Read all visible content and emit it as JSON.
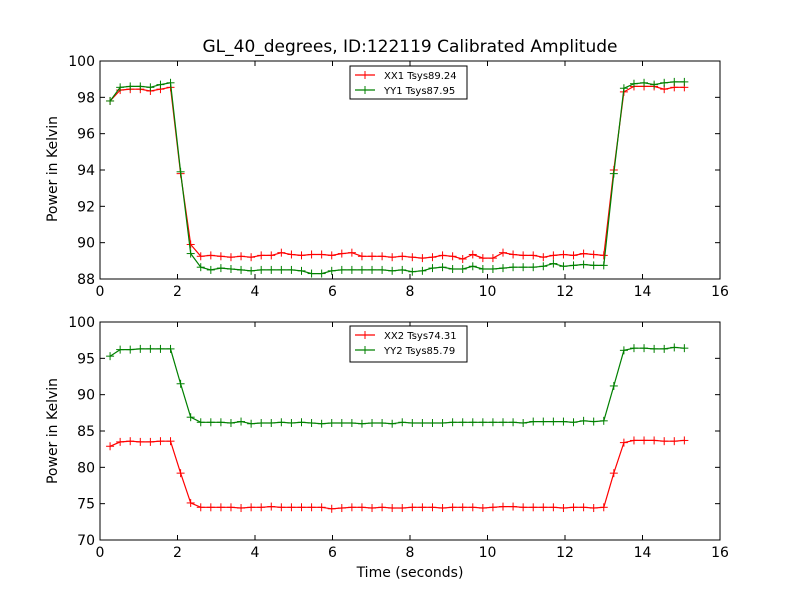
{
  "chart_data": [
    {
      "type": "line",
      "title": "GL_40_degrees, ID:122119 Calibrated Amplitude",
      "ylabel": "Power in Kelvin",
      "xlabel": "",
      "xlim": [
        0,
        16
      ],
      "ylim": [
        88,
        100
      ],
      "xticks": [
        0,
        2,
        4,
        6,
        8,
        10,
        12,
        14,
        16
      ],
      "yticks": [
        88,
        90,
        92,
        94,
        96,
        98,
        100
      ],
      "legend_position": "top-center",
      "x": [
        0.26,
        0.52,
        0.78,
        1.04,
        1.3,
        1.56,
        1.82,
        2.08,
        2.34,
        2.6,
        2.86,
        3.12,
        3.38,
        3.64,
        3.9,
        4.16,
        4.42,
        4.68,
        4.94,
        5.2,
        5.46,
        5.72,
        5.98,
        6.24,
        6.5,
        6.76,
        7.02,
        7.28,
        7.54,
        7.8,
        8.06,
        8.32,
        8.58,
        8.84,
        9.1,
        9.36,
        9.62,
        9.88,
        10.14,
        10.4,
        10.66,
        10.92,
        11.18,
        11.44,
        11.7,
        11.96,
        12.22,
        12.48,
        12.74,
        13.0,
        13.26,
        13.52,
        13.78,
        14.04,
        14.3,
        14.56,
        14.82,
        15.08
      ],
      "series": [
        {
          "name": "XX1 Tsys89.24",
          "color": "#ff0000",
          "values": [
            97.8,
            98.4,
            98.45,
            98.45,
            98.35,
            98.45,
            98.55,
            93.8,
            89.9,
            89.25,
            89.3,
            89.25,
            89.2,
            89.25,
            89.2,
            89.3,
            89.3,
            89.45,
            89.35,
            89.3,
            89.35,
            89.35,
            89.3,
            89.4,
            89.45,
            89.25,
            89.25,
            89.25,
            89.2,
            89.25,
            89.2,
            89.15,
            89.2,
            89.3,
            89.25,
            89.1,
            89.35,
            89.15,
            89.15,
            89.45,
            89.35,
            89.3,
            89.3,
            89.2,
            89.3,
            89.35,
            89.3,
            89.4,
            89.35,
            89.3,
            94.0,
            98.3,
            98.6,
            98.6,
            98.6,
            98.45,
            98.55,
            98.55
          ]
        },
        {
          "name": "YY1 Tsys87.95",
          "color": "#008000",
          "values": [
            97.8,
            98.55,
            98.6,
            98.6,
            98.55,
            98.7,
            98.8,
            93.9,
            89.4,
            88.65,
            88.5,
            88.6,
            88.55,
            88.5,
            88.45,
            88.5,
            88.5,
            88.5,
            88.5,
            88.45,
            88.3,
            88.3,
            88.45,
            88.5,
            88.5,
            88.5,
            88.5,
            88.5,
            88.45,
            88.5,
            88.4,
            88.45,
            88.6,
            88.65,
            88.55,
            88.55,
            88.7,
            88.55,
            88.55,
            88.6,
            88.65,
            88.65,
            88.65,
            88.7,
            88.85,
            88.7,
            88.75,
            88.8,
            88.75,
            88.75,
            93.8,
            98.5,
            98.75,
            98.8,
            98.7,
            98.8,
            98.85,
            98.85
          ]
        }
      ]
    },
    {
      "type": "line",
      "title": "",
      "ylabel": "Power in Kelvin",
      "xlabel": "Time (seconds)",
      "xlim": [
        0,
        16
      ],
      "ylim": [
        70,
        100
      ],
      "xticks": [
        0,
        2,
        4,
        6,
        8,
        10,
        12,
        14,
        16
      ],
      "yticks": [
        70,
        75,
        80,
        85,
        90,
        95,
        100
      ],
      "legend_position": "top-center",
      "x": [
        0.26,
        0.52,
        0.78,
        1.04,
        1.3,
        1.56,
        1.82,
        2.08,
        2.34,
        2.6,
        2.86,
        3.12,
        3.38,
        3.64,
        3.9,
        4.16,
        4.42,
        4.68,
        4.94,
        5.2,
        5.46,
        5.72,
        5.98,
        6.24,
        6.5,
        6.76,
        7.02,
        7.28,
        7.54,
        7.8,
        8.06,
        8.32,
        8.58,
        8.84,
        9.1,
        9.36,
        9.62,
        9.88,
        10.14,
        10.4,
        10.66,
        10.92,
        11.18,
        11.44,
        11.7,
        11.96,
        12.22,
        12.48,
        12.74,
        13.0,
        13.26,
        13.52,
        13.78,
        14.04,
        14.3,
        14.56,
        14.82,
        15.08
      ],
      "series": [
        {
          "name": "XX2 Tsys74.31",
          "color": "#ff0000",
          "values": [
            82.9,
            83.5,
            83.6,
            83.5,
            83.5,
            83.6,
            83.6,
            79.2,
            75.1,
            74.5,
            74.5,
            74.5,
            74.5,
            74.4,
            74.5,
            74.5,
            74.6,
            74.5,
            74.5,
            74.5,
            74.5,
            74.5,
            74.3,
            74.4,
            74.5,
            74.5,
            74.4,
            74.5,
            74.4,
            74.4,
            74.5,
            74.5,
            74.5,
            74.4,
            74.5,
            74.5,
            74.5,
            74.4,
            74.5,
            74.6,
            74.6,
            74.5,
            74.5,
            74.5,
            74.5,
            74.4,
            74.5,
            74.5,
            74.4,
            74.5,
            79.2,
            83.4,
            83.7,
            83.7,
            83.7,
            83.6,
            83.6,
            83.7
          ]
        },
        {
          "name": "YY2 Tsys85.79",
          "color": "#008000",
          "values": [
            95.3,
            96.2,
            96.2,
            96.3,
            96.3,
            96.3,
            96.3,
            91.5,
            86.9,
            86.2,
            86.2,
            86.2,
            86.1,
            86.3,
            86.0,
            86.1,
            86.1,
            86.2,
            86.1,
            86.2,
            86.1,
            86.0,
            86.1,
            86.1,
            86.1,
            86.0,
            86.1,
            86.1,
            86.0,
            86.2,
            86.1,
            86.1,
            86.1,
            86.1,
            86.2,
            86.2,
            86.2,
            86.2,
            86.2,
            86.2,
            86.2,
            86.1,
            86.3,
            86.3,
            86.3,
            86.3,
            86.2,
            86.4,
            86.3,
            86.4,
            91.2,
            96.1,
            96.4,
            96.4,
            96.3,
            96.3,
            96.5,
            96.4
          ]
        }
      ]
    }
  ]
}
